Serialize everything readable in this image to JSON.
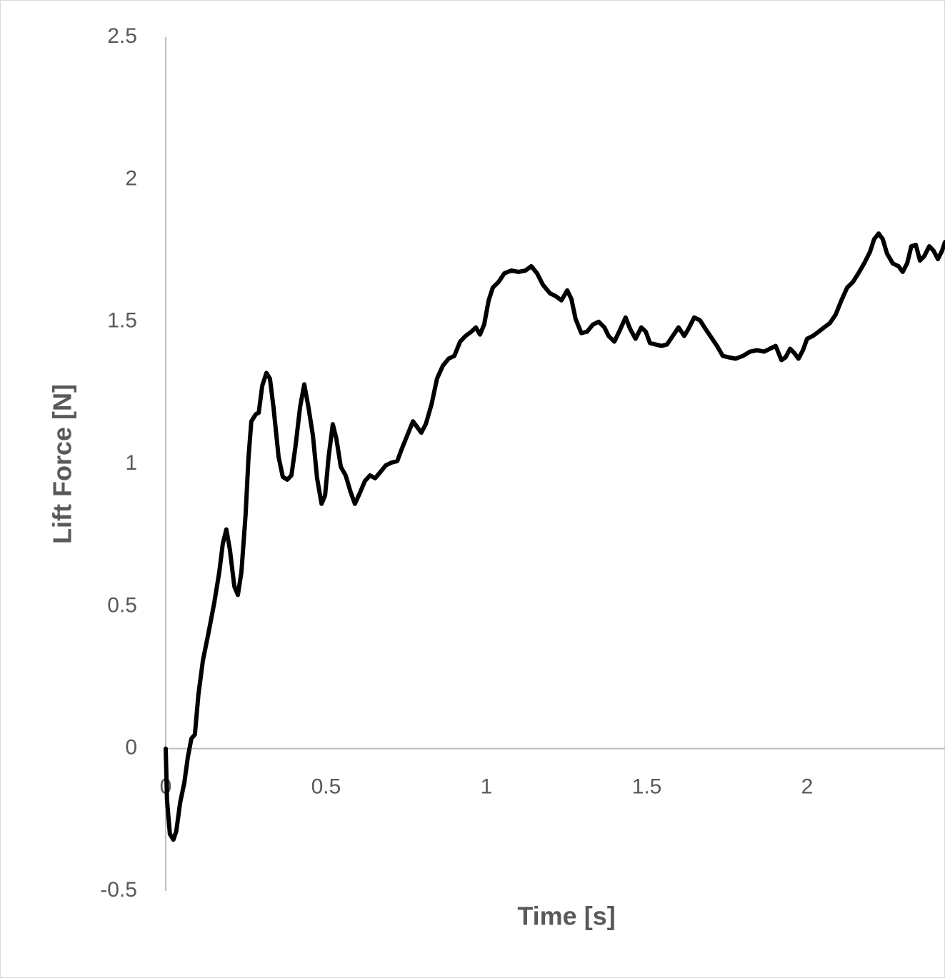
{
  "chart_data": {
    "type": "line",
    "x_label": "Time [s]",
    "y_label": "Lift Force [N]",
    "xlim": [
      0,
      2.43
    ],
    "ylim": [
      -0.5,
      2.5
    ],
    "xticks": [
      0,
      0.5,
      1,
      1.5,
      2
    ],
    "yticks": [
      -0.5,
      0,
      0.5,
      1,
      1.5,
      2,
      2.5
    ],
    "grid": false,
    "x": [
      0,
      0.004,
      0.013,
      0.024,
      0.033,
      0.045,
      0.058,
      0.069,
      0.08,
      0.091,
      0.102,
      0.116,
      0.134,
      0.151,
      0.167,
      0.178,
      0.189,
      0.2,
      0.214,
      0.225,
      0.236,
      0.249,
      0.258,
      0.267,
      0.281,
      0.29,
      0.301,
      0.314,
      0.325,
      0.336,
      0.352,
      0.365,
      0.379,
      0.392,
      0.405,
      0.419,
      0.432,
      0.445,
      0.459,
      0.472,
      0.486,
      0.497,
      0.508,
      0.521,
      0.532,
      0.546,
      0.561,
      0.577,
      0.59,
      0.606,
      0.621,
      0.637,
      0.653,
      0.668,
      0.686,
      0.704,
      0.722,
      0.735,
      0.753,
      0.771,
      0.784,
      0.797,
      0.811,
      0.829,
      0.846,
      0.864,
      0.882,
      0.9,
      0.918,
      0.935,
      0.953,
      0.967,
      0.98,
      0.993,
      1.007,
      1.02,
      1.038,
      1.056,
      1.078,
      1.1,
      1.122,
      1.14,
      1.158,
      1.176,
      1.198,
      1.216,
      1.234,
      1.252,
      1.265,
      1.278,
      1.296,
      1.314,
      1.332,
      1.35,
      1.368,
      1.381,
      1.399,
      1.416,
      1.434,
      1.448,
      1.465,
      1.483,
      1.497,
      1.51,
      1.528,
      1.546,
      1.563,
      1.581,
      1.599,
      1.617,
      1.63,
      1.648,
      1.666,
      1.683,
      1.701,
      1.719,
      1.737,
      1.755,
      1.777,
      1.8,
      1.822,
      1.844,
      1.866,
      1.884,
      1.902,
      1.92,
      1.933,
      1.947,
      1.96,
      1.973,
      1.987,
      2.0,
      2.018,
      2.036,
      2.053,
      2.071,
      2.089,
      2.107,
      2.125,
      2.143,
      2.16,
      2.178,
      2.196,
      2.209,
      2.223,
      2.236,
      2.249,
      2.267,
      2.285,
      2.298,
      2.312,
      2.325,
      2.339,
      2.352,
      2.365,
      2.381,
      2.394,
      2.408,
      2.421,
      2.43
    ],
    "series": [
      {
        "color": "#000000",
        "values": [
          0,
          -0.18,
          -0.3,
          -0.32,
          -0.29,
          -0.19,
          -0.12,
          -0.03,
          0.035,
          0.05,
          0.19,
          0.31,
          0.41,
          0.51,
          0.62,
          0.72,
          0.77,
          0.7,
          0.57,
          0.54,
          0.62,
          0.82,
          1.02,
          1.15,
          1.175,
          1.18,
          1.275,
          1.32,
          1.3,
          1.2,
          1.025,
          0.955,
          0.945,
          0.96,
          1.065,
          1.2,
          1.28,
          1.2,
          1.1,
          0.95,
          0.86,
          0.89,
          1.025,
          1.14,
          1.09,
          0.99,
          0.96,
          0.9,
          0.86,
          0.9,
          0.94,
          0.96,
          0.95,
          0.97,
          0.995,
          1.005,
          1.01,
          1.05,
          1.1,
          1.15,
          1.13,
          1.11,
          1.14,
          1.21,
          1.3,
          1.345,
          1.37,
          1.38,
          1.43,
          1.45,
          1.465,
          1.48,
          1.455,
          1.49,
          1.575,
          1.62,
          1.64,
          1.67,
          1.68,
          1.675,
          1.68,
          1.695,
          1.67,
          1.63,
          1.6,
          1.59,
          1.575,
          1.61,
          1.58,
          1.51,
          1.46,
          1.465,
          1.49,
          1.5,
          1.48,
          1.45,
          1.43,
          1.47,
          1.515,
          1.475,
          1.44,
          1.48,
          1.465,
          1.425,
          1.42,
          1.415,
          1.42,
          1.45,
          1.48,
          1.45,
          1.475,
          1.515,
          1.505,
          1.475,
          1.445,
          1.415,
          1.38,
          1.375,
          1.37,
          1.38,
          1.395,
          1.4,
          1.395,
          1.405,
          1.415,
          1.365,
          1.375,
          1.405,
          1.39,
          1.37,
          1.4,
          1.44,
          1.45,
          1.465,
          1.48,
          1.495,
          1.525,
          1.575,
          1.62,
          1.64,
          1.67,
          1.705,
          1.745,
          1.79,
          1.81,
          1.79,
          1.74,
          1.705,
          1.695,
          1.675,
          1.705,
          1.765,
          1.77,
          1.715,
          1.73,
          1.765,
          1.75,
          1.72,
          1.75,
          1.78
        ]
      }
    ]
  }
}
